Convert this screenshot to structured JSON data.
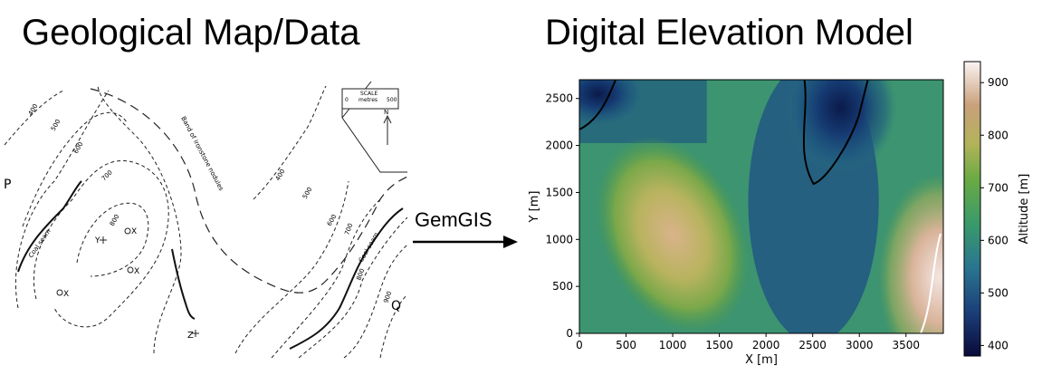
{
  "titles": {
    "left": "Geological Map/Data",
    "right": "Digital Elevation Model"
  },
  "arrow": {
    "label": "GemGIS"
  },
  "map": {
    "scale_title": "SCALE",
    "scale_units": "metres",
    "scale_start": "0",
    "scale_end": "500",
    "north": "N",
    "point_p": "P",
    "point_q": "Q",
    "point_y": "Y",
    "point_z": "Z",
    "x_mark": "X",
    "seam_label": "Coal seam",
    "band_label": "Band of ironstone nodules",
    "contour_labels": [
      "400",
      "500",
      "600",
      "700",
      "800",
      "400",
      "500",
      "600",
      "700",
      "800",
      "900"
    ]
  },
  "chart_data": {
    "type": "heatmap",
    "title": "",
    "xlabel": "X [m]",
    "ylabel": "Y [m]",
    "xlim": [
      0,
      3900
    ],
    "ylim": [
      0,
      2700
    ],
    "x_ticks": [
      0,
      500,
      1000,
      1500,
      2000,
      2500,
      3000,
      3500
    ],
    "y_ticks": [
      0,
      500,
      1000,
      1500,
      2000,
      2500
    ],
    "colorbar": {
      "label": "Altitude [m]",
      "range": [
        380,
        940
      ],
      "ticks": [
        400,
        500,
        600,
        700,
        800,
        900
      ],
      "colormap": "gist_earth"
    },
    "features": [
      {
        "name": "ridge",
        "x": 1000,
        "y": 1050,
        "altitude": 820
      },
      {
        "name": "valley",
        "x": 2800,
        "y": 2400,
        "altitude": 390
      },
      {
        "name": "peak",
        "x": 3850,
        "y": 600,
        "altitude": 930
      }
    ]
  }
}
